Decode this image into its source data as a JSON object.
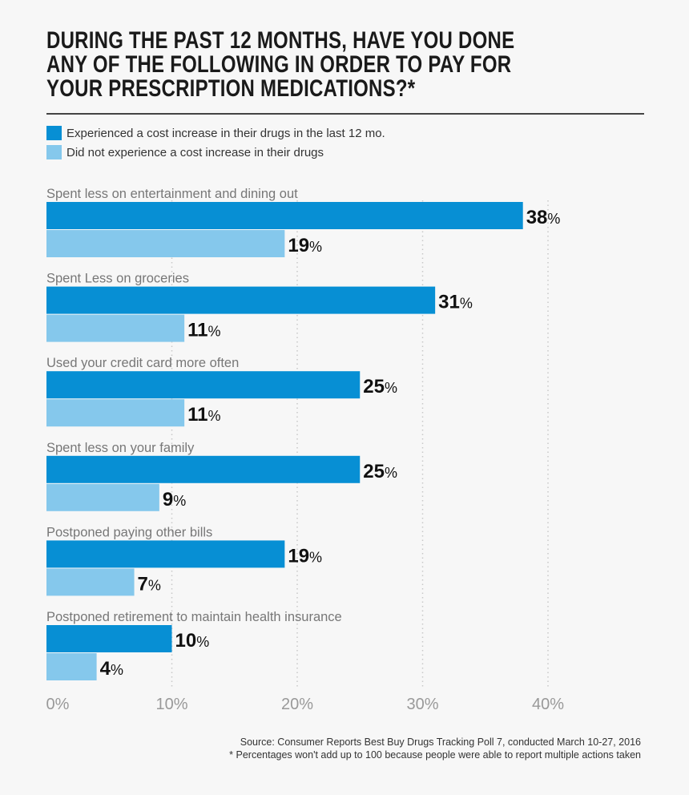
{
  "title_lines": [
    "DURING THE PAST 12 MONTHS, HAVE YOU DONE",
    "ANY OF THE FOLLOWING IN ORDER TO PAY FOR",
    "YOUR PRESCRIPTION MEDICATIONS?*"
  ],
  "footer": {
    "source": "Source: Consumer Reports Best Buy Drugs Tracking Poll 7, conducted March 10-27, 2016",
    "note": "* Percentages won't add up to 100 because people were able to report multiple actions taken"
  },
  "chart_data": {
    "type": "bar",
    "orientation": "horizontal",
    "title": "DURING THE PAST 12 MONTHS, HAVE YOU DONE ANY OF THE FOLLOWING IN ORDER TO PAY FOR YOUR PRESCRIPTION MEDICATIONS?*",
    "categories": [
      "Spent less on entertainment and dining out",
      "Spent Less on groceries",
      "Used your credit card more often",
      "Spent less on your family",
      "Postponed paying other bills",
      "Postponed retirement to maintain health insurance"
    ],
    "series": [
      {
        "name": "Experienced a cost increase in their drugs in the last 12 mo.",
        "color": "#078fd4",
        "values": [
          38,
          31,
          25,
          25,
          19,
          10
        ]
      },
      {
        "name": "Did not experience a cost increase in their drugs",
        "color": "#85c8ec",
        "values": [
          19,
          11,
          11,
          9,
          7,
          4
        ]
      }
    ],
    "xlim": [
      0,
      40
    ],
    "xticks": [
      "0%",
      "10%",
      "20%",
      "30%",
      "40%"
    ],
    "tick_values": [
      0,
      10,
      20,
      30,
      40
    ],
    "value_suffix": "%",
    "grid": "dotted vertical",
    "legend": "top-left"
  }
}
